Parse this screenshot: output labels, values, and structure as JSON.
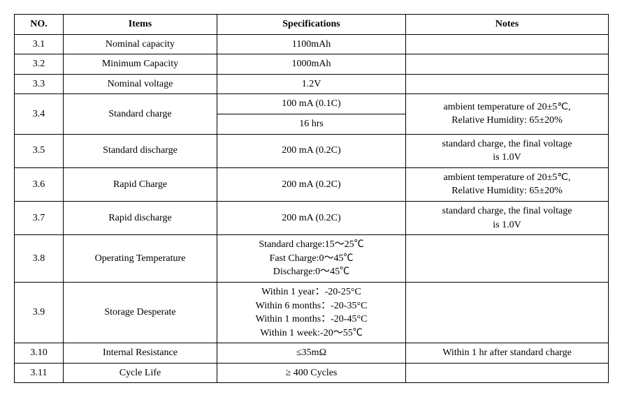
{
  "columns": [
    "NO.",
    "Items",
    "Specifications",
    "Notes"
  ],
  "rows": [
    {
      "no": "3.1",
      "item": "Nominal capacity",
      "spec": "1100mAh",
      "note": ""
    },
    {
      "no": "3.2",
      "item": "Minimum Capacity",
      "spec": "1000mAh",
      "note": ""
    },
    {
      "no": "3.3",
      "item": "Nominal voltage",
      "spec": "1.2V",
      "note": ""
    },
    {
      "no": "3.4",
      "item": "Standard charge",
      "spec1": "100 mA (0.1C)",
      "spec2": "16 hrs",
      "note": "ambient temperature of 20±5℃,\nRelative Humidity: 65±20%"
    },
    {
      "no": "3.5",
      "item": "Standard discharge",
      "spec": "200 mA (0.2C)",
      "note": "standard charge, the final voltage\nis 1.0V"
    },
    {
      "no": "3.6",
      "item": "Rapid Charge",
      "spec": "200 mA (0.2C)",
      "note": "ambient temperature of 20±5℃,\nRelative Humidity: 65±20%"
    },
    {
      "no": "3.7",
      "item": "Rapid discharge",
      "spec": "200 mA (0.2C)",
      "note": "standard charge, the final voltage\nis 1.0V"
    },
    {
      "no": "3.8",
      "item": "Operating Temperature",
      "spec": "Standard charge:15～25℃\nFast Charge:0～45℃\nDischarge:0～45℃",
      "note": ""
    },
    {
      "no": "3.9",
      "item": "Storage Desperate",
      "spec": "Within 1 year：-20-25°C\nWithin 6 months：-20-35°C\nWithin 1 months：-20-45°C\nWithin 1 week:-20～55℃",
      "note": ""
    },
    {
      "no": "3.10",
      "item": "Internal Resistance",
      "spec": "≤35mΩ",
      "note": "Within 1 hr after standard charge"
    },
    {
      "no": "3.11",
      "item": "Cycle Life",
      "spec": "≥ 400 Cycles",
      "note": ""
    }
  ]
}
